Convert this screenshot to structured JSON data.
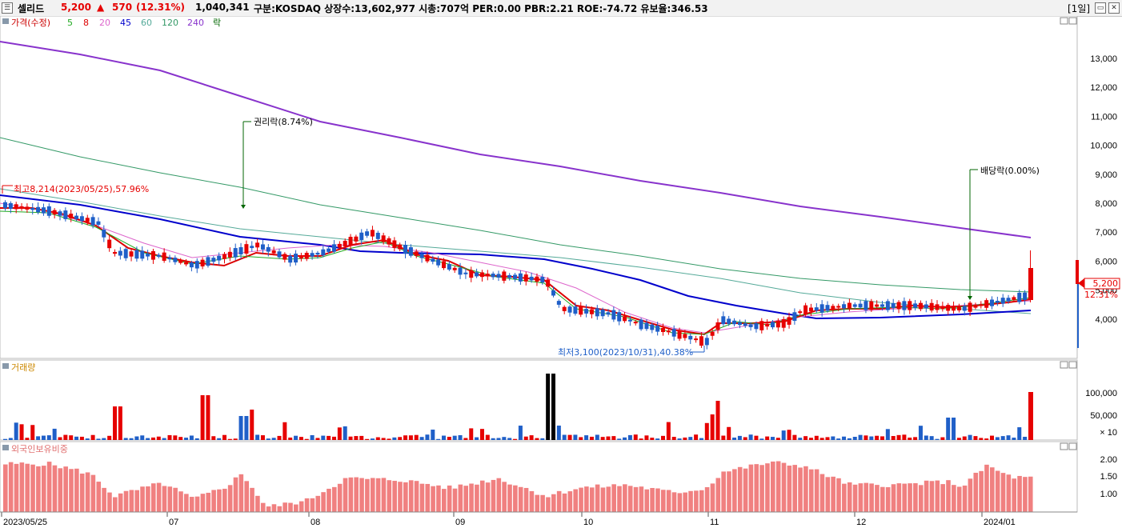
{
  "header": {
    "name": "셀리드",
    "price": "5,200",
    "change_arrow": "▲",
    "change": "570",
    "change_pct": "(12.31%)",
    "volume": "1,040,341",
    "info": "구분:KOSDAQ 상장수:13,602,977 시총:707억 PER:0.00 PBR:2.21 ROE:-74.72 유보율:346.53",
    "period_button": "[1일]"
  },
  "price_panel": {
    "legend": [
      "가격(수정)",
      "5",
      "8",
      "20",
      "45",
      "60",
      "120",
      "240",
      "락"
    ],
    "legend_colors": [
      "#cc0000",
      "#22aa22",
      "#dd0000",
      "#dd66cc",
      "#0000cc",
      "#55aa99",
      "#339966",
      "#8833cc",
      "#006600"
    ],
    "y_labels": [
      "13,000",
      "12,000",
      "11,000",
      "10,000",
      "9,000",
      "8,000",
      "7,000",
      "6,000",
      "5,000",
      "4,000"
    ],
    "price_tag": "5,200",
    "pct_tag": "12.31%",
    "high_note": "최고8,214(2023/05/25),57.96%",
    "low_note": "최저3,100(2023/10/31),40.38%",
    "event1": "권리락(8.74%)",
    "event2": "배당락(0.00%)"
  },
  "volume_panel": {
    "legend": "거래량",
    "y_labels": [
      "100,000",
      "50,000"
    ],
    "unit": "× 10"
  },
  "foreign_panel": {
    "legend": "외국인보유비중",
    "y_labels": [
      "2.00",
      "1.50",
      "1.00"
    ]
  },
  "x_labels": [
    "2023/05/25",
    "07",
    "08",
    "09",
    "10",
    "11",
    "12",
    "2024/01"
  ],
  "colors": {
    "up": "#e60000",
    "down": "#1f5fc8",
    "ma5": "#22aa22",
    "ma8": "#dd0000",
    "ma20": "#dd66cc",
    "ma45": "#0000cc",
    "ma60": "#55aa99",
    "ma120": "#339966",
    "ma240": "#8833cc",
    "foreign": "#f08080"
  }
}
